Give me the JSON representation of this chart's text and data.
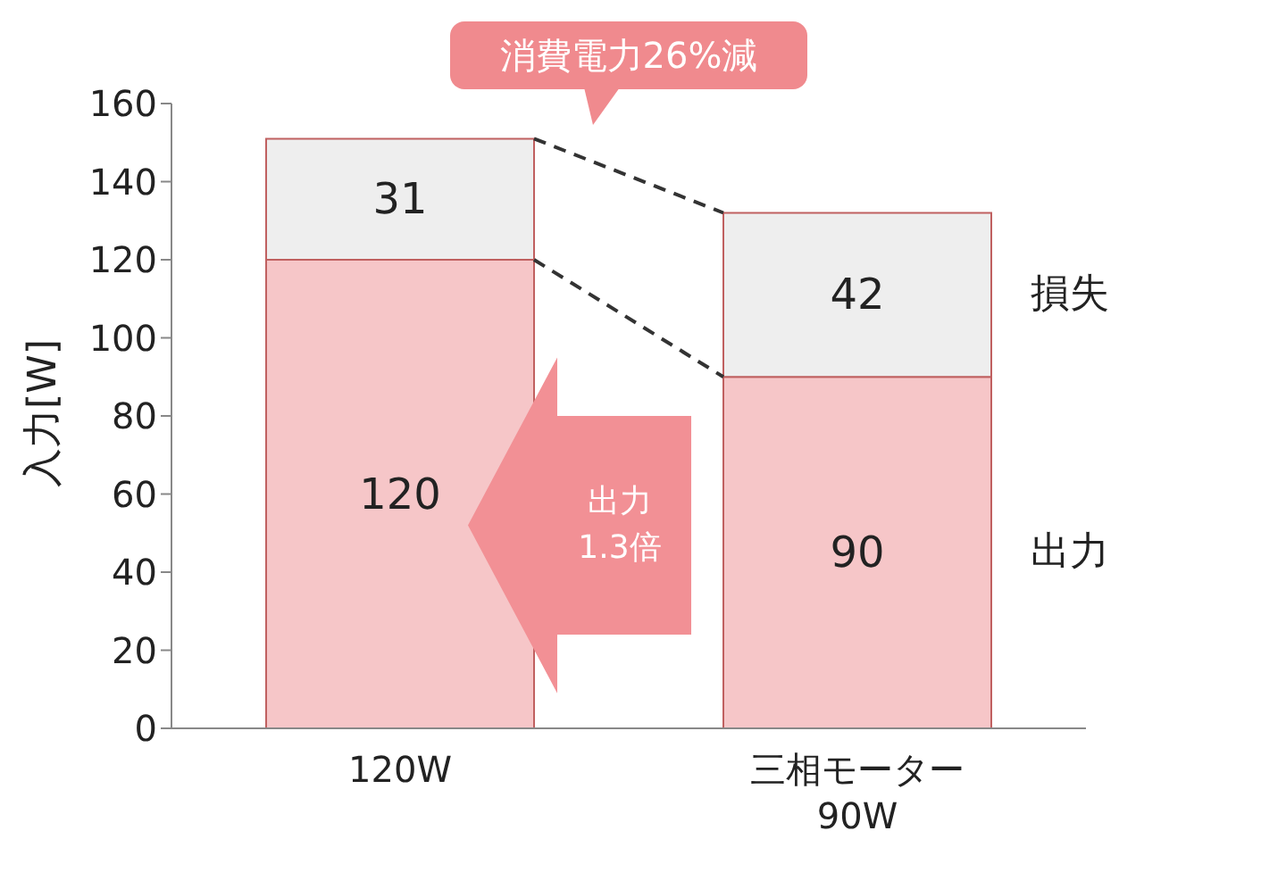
{
  "chart_data": {
    "type": "bar",
    "stacked": true,
    "ylabel": "入力[W]",
    "categories": [
      "120W",
      "三相モーター\n90W"
    ],
    "series": [
      {
        "name": "出力",
        "color": "#f6c6c8",
        "values": [
          120,
          90
        ]
      },
      {
        "name": "損失",
        "color": "#eeeeee",
        "values": [
          31,
          42
        ]
      }
    ],
    "ylim": [
      0,
      160
    ],
    "yticks": [
      0,
      20,
      40,
      60,
      80,
      100,
      120,
      140,
      160
    ],
    "data_labels": true,
    "annotations": [
      "消費電力26%減",
      "出力 1.3倍"
    ]
  }
}
